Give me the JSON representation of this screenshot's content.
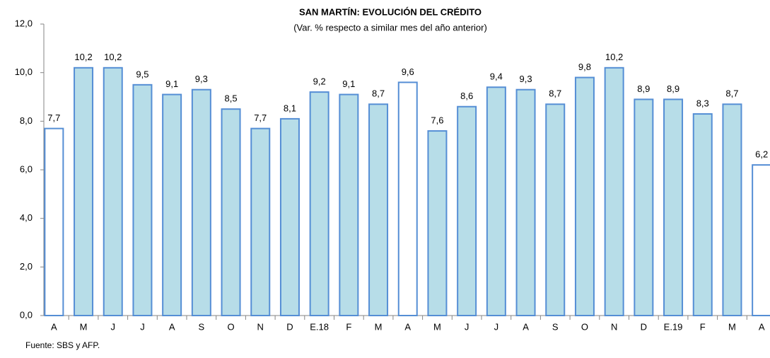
{
  "chart_data": {
    "type": "bar",
    "title": "SAN MARTÍN: EVOLUCIÓN DEL CRÉDITO",
    "subtitle": "(Var. % respecto a similar mes del año anterior)",
    "categories": [
      "A",
      "M",
      "J",
      "J",
      "A",
      "S",
      "O",
      "N",
      "D",
      "E.18",
      "F",
      "M",
      "A",
      "M",
      "J",
      "J",
      "A",
      "S",
      "O",
      "N",
      "D",
      "E.19",
      "F",
      "M",
      "A"
    ],
    "values": [
      7.7,
      10.2,
      10.2,
      9.5,
      9.1,
      9.3,
      8.5,
      7.7,
      8.1,
      9.2,
      9.1,
      8.7,
      9.6,
      7.6,
      8.6,
      9.4,
      9.3,
      8.7,
      9.8,
      10.2,
      8.9,
      8.9,
      8.3,
      8.7,
      6.2
    ],
    "value_labels": [
      "7,7",
      "10,2",
      "10,2",
      "9,5",
      "9,1",
      "9,3",
      "8,5",
      "7,7",
      "8,1",
      "9,2",
      "9,1",
      "8,7",
      "9,6",
      "7,6",
      "8,6",
      "9,4",
      "9,3",
      "8,7",
      "9,8",
      "10,2",
      "8,9",
      "8,9",
      "8,3",
      "8,7",
      "6,2"
    ],
    "colors": [
      "#ffffff",
      "#b7dde8",
      "#b7dde8",
      "#b7dde8",
      "#b7dde8",
      "#b7dde8",
      "#b7dde8",
      "#b7dde8",
      "#b7dde8",
      "#b7dde8",
      "#b7dde8",
      "#b7dde8",
      "#ffffff",
      "#b7dde8",
      "#b7dde8",
      "#b7dde8",
      "#b7dde8",
      "#b7dde8",
      "#b7dde8",
      "#b7dde8",
      "#b7dde8",
      "#b7dde8",
      "#b7dde8",
      "#b7dde8",
      "#ffffff"
    ],
    "edge_color": "#558ed5",
    "ylim": [
      0,
      12
    ],
    "yticks": [
      {
        "value": 0,
        "label": "0,0"
      },
      {
        "value": 2,
        "label": "2,0"
      },
      {
        "value": 4,
        "label": "4,0"
      },
      {
        "value": 6,
        "label": "6,0"
      },
      {
        "value": 8,
        "label": "8,0"
      },
      {
        "value": 10,
        "label": "10,0"
      },
      {
        "value": 12,
        "label": "12,0"
      }
    ],
    "grid": false,
    "footnote": "Fuente: SBS y AFP."
  }
}
